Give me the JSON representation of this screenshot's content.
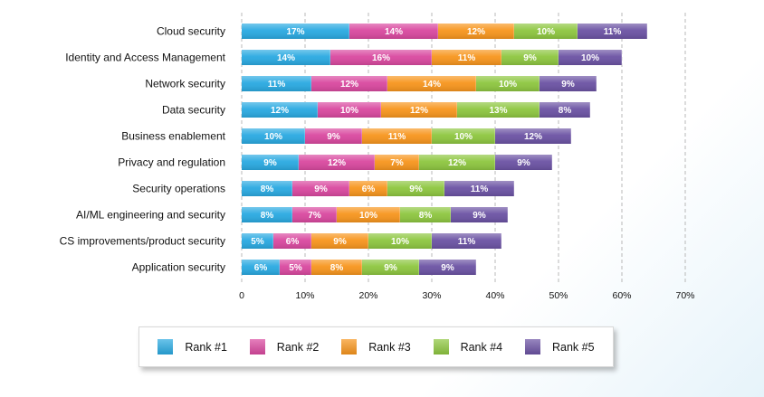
{
  "chart_data": {
    "type": "bar",
    "orientation": "horizontal",
    "stacked": true,
    "categories": [
      "Cloud security",
      "Identity and Access Management",
      "Network security",
      "Data security",
      "Business enablement",
      "Privacy and regulation",
      "Security operations",
      "AI/ML engineering and security",
      "CS improvements/product security",
      "Application security"
    ],
    "series": [
      {
        "name": "Rank #1",
        "color": "#29a9e1",
        "values": [
          17,
          14,
          11,
          12,
          10,
          9,
          8,
          8,
          5,
          6
        ],
        "labels": [
          "17%",
          "14%",
          "11%",
          "12%",
          "10%",
          "9%",
          "8%",
          "8%",
          "5%",
          "6%"
        ]
      },
      {
        "name": "Rank #2",
        "color": "#d9489f",
        "values": [
          14,
          16,
          12,
          10,
          9,
          12,
          9,
          7,
          6,
          5
        ],
        "labels": [
          "14%",
          "16%",
          "12%",
          "10%",
          "9%",
          "12%",
          "9%",
          "7%",
          "6%",
          "5%"
        ]
      },
      {
        "name": "Rank #3",
        "color": "#f7951d",
        "values": [
          12,
          11,
          14,
          12,
          11,
          7,
          6,
          10,
          9,
          8
        ],
        "labels": [
          "12%",
          "11%",
          "14%",
          "12%",
          "11%",
          "7%",
          "6%",
          "10%",
          "9%",
          "8%"
        ]
      },
      {
        "name": "Rank #4",
        "color": "#8dc63f",
        "values": [
          10,
          9,
          10,
          13,
          10,
          12,
          9,
          8,
          10,
          9
        ],
        "labels": [
          "10%",
          "9%",
          "10%",
          "13%",
          "10%",
          "12%",
          "9%",
          "8%",
          "10%",
          "9%"
        ]
      },
      {
        "name": "Rank #5",
        "color": "#6b52a3",
        "values": [
          11,
          10,
          9,
          8,
          12,
          9,
          11,
          9,
          11,
          9
        ],
        "labels": [
          "11%",
          "10%",
          "9%",
          "8%",
          "12%",
          "9%",
          "11%",
          "9%",
          "11%",
          "9%"
        ]
      }
    ],
    "xlim": [
      0,
      70
    ],
    "xticks": [
      0,
      10,
      20,
      30,
      40,
      50,
      60,
      70
    ],
    "xtick_labels": [
      "0",
      "10%",
      "20%",
      "30%",
      "40%",
      "50%",
      "60%",
      "70%"
    ],
    "grid": "vertical dashed",
    "legend_position": "bottom"
  }
}
